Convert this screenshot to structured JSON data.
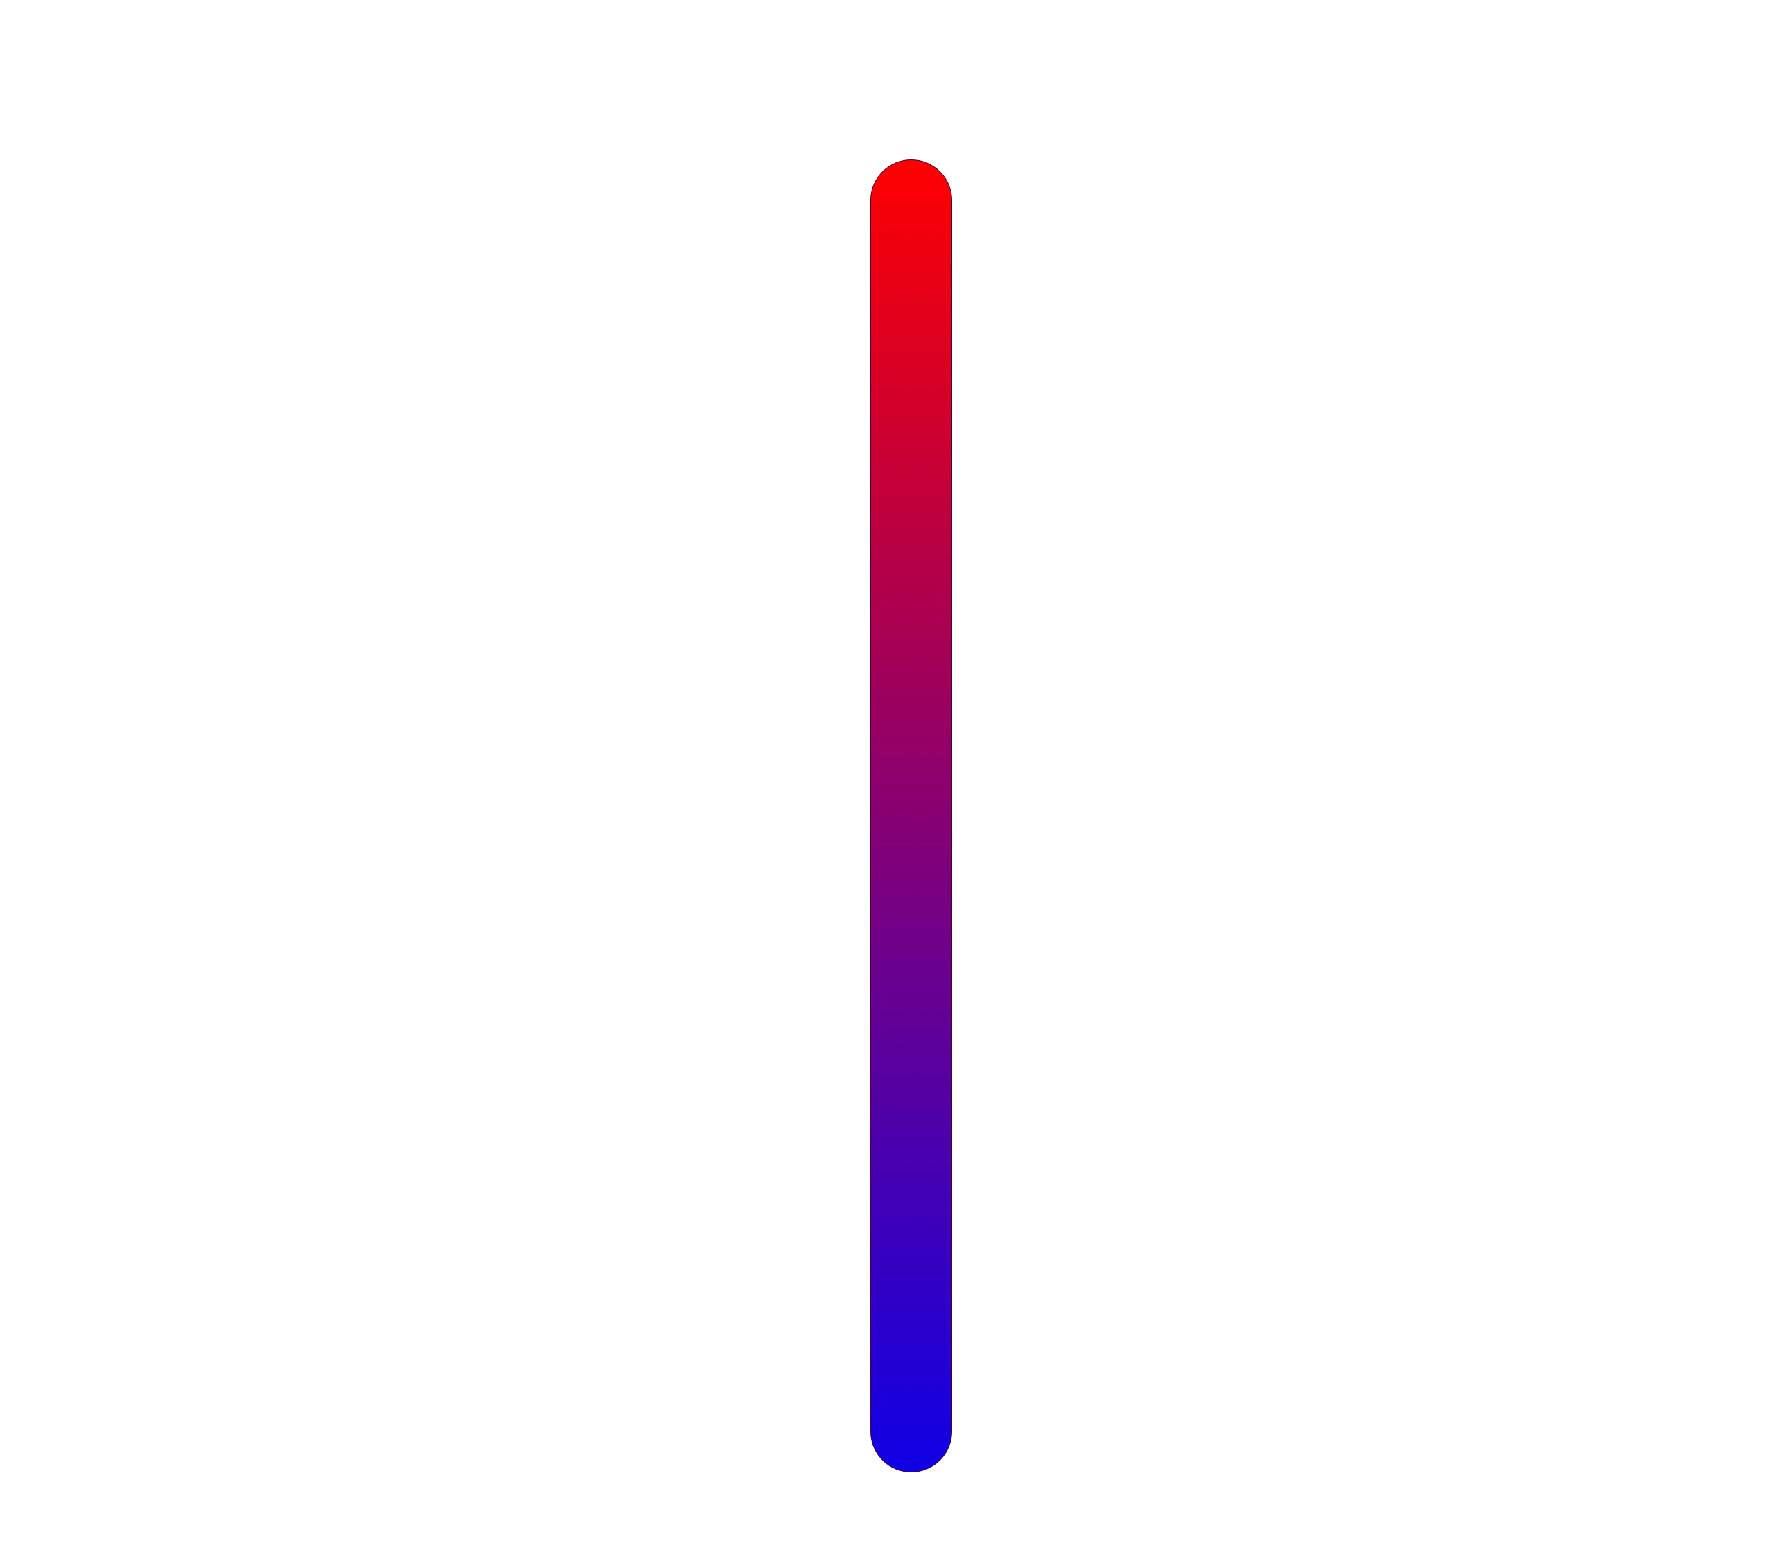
{
  "bar": {
    "top_color": "#ff0000",
    "bottom_color": "#0f00e6",
    "outline_color": "#4a0030",
    "orientation": "vertical"
  },
  "background_color": "#ffffff"
}
